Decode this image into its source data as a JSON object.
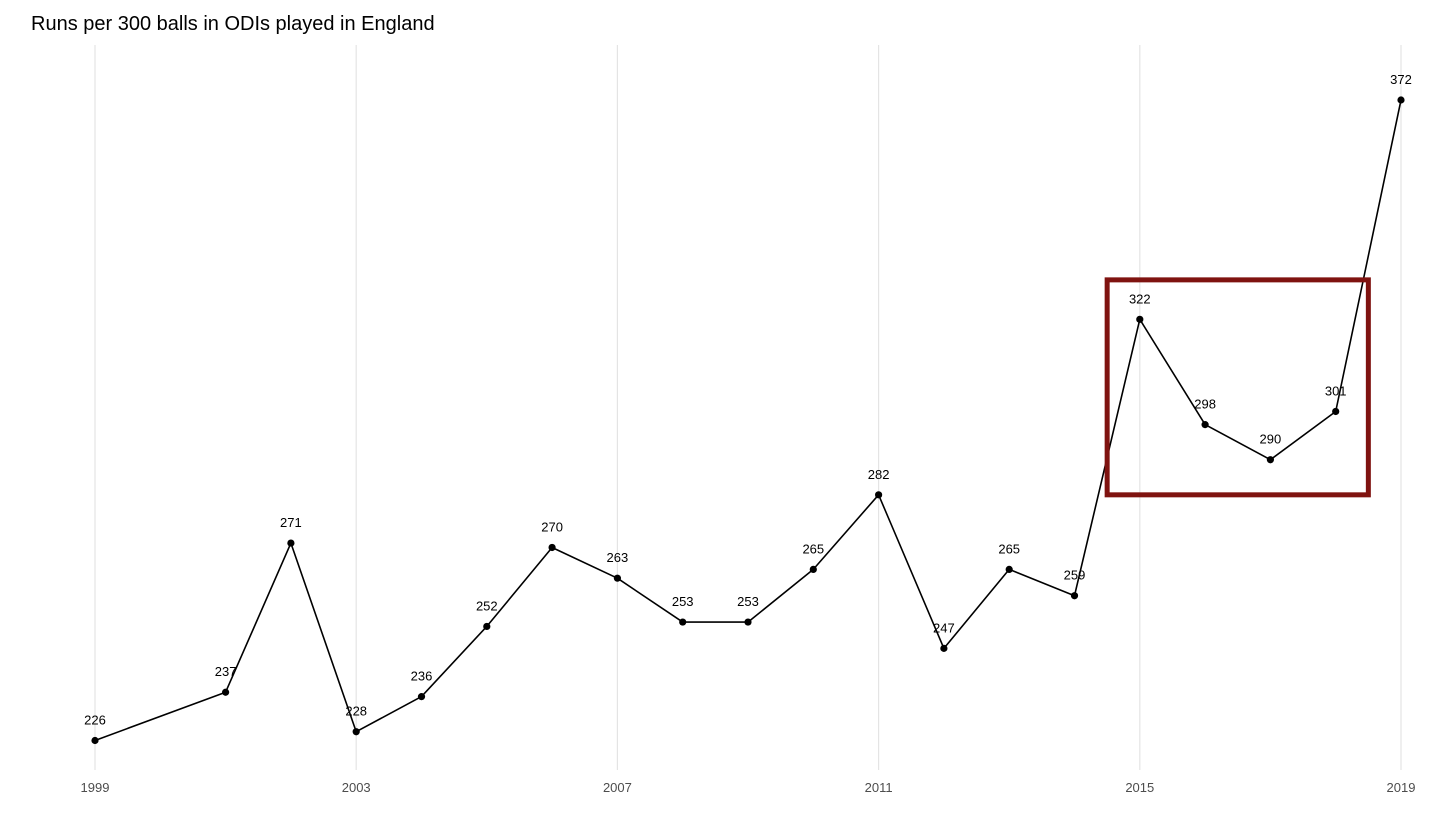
{
  "chart_data": {
    "type": "line",
    "title": "Runs per 300 balls in ODIs played in England",
    "xlabel": "",
    "ylabel": "",
    "x": [
      1999,
      2001,
      2002,
      2003,
      2004,
      2005,
      2006,
      2007,
      2008,
      2009,
      2010,
      2011,
      2012,
      2013,
      2014,
      2015,
      2016,
      2017,
      2018,
      2019
    ],
    "values": [
      226,
      237,
      271,
      228,
      236,
      252,
      270,
      263,
      253,
      253,
      265,
      282,
      247,
      265,
      259,
      322,
      298,
      290,
      301,
      372
    ],
    "data_labels": [
      "226",
      "237",
      "271",
      "228",
      "236",
      "252",
      "270",
      "263",
      "253",
      "253",
      "265",
      "282",
      "247",
      "265",
      "259",
      "322",
      "298",
      "290",
      "301",
      "372"
    ],
    "x_ticks": [
      1999,
      2003,
      2007,
      2011,
      2015,
      2019
    ],
    "x_tick_labels": [
      "1999",
      "2003",
      "2007",
      "2011",
      "2015",
      "2019"
    ],
    "y_axis_shown": false,
    "grid": "vertical major gridlines only",
    "highlight": {
      "shape": "rectangle",
      "color": "#7f1310",
      "x_range": [
        2014.5,
        2018.5
      ],
      "y_range": [
        282,
        331
      ]
    },
    "colors": {
      "line": "#000000",
      "point": "#000000",
      "grid": "#e4e4e4",
      "highlight": "#7f1310"
    }
  }
}
